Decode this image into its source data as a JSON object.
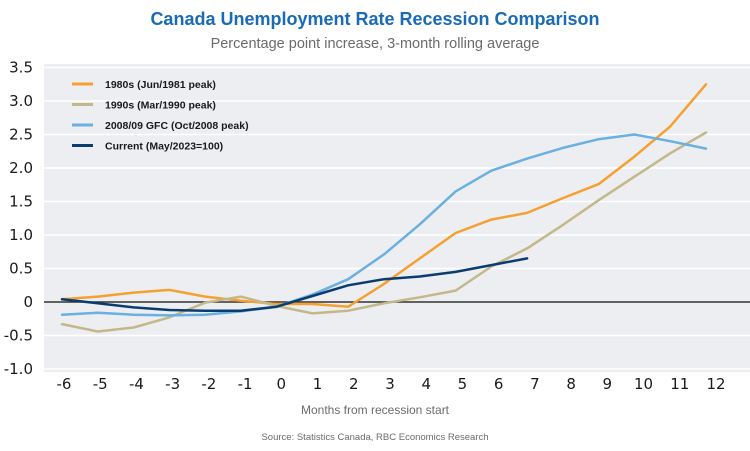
{
  "chart_data": {
    "type": "line",
    "title": "Canada Unemployment Rate Recession Comparison",
    "subtitle": "Percentage point increase, 3-month rolling average",
    "xlabel": "Months from recession start",
    "ylabel": "",
    "source": "Source: Statistics Canada, RBC Economics Research",
    "x_ticks": [
      "-6",
      "-5",
      "-4",
      "-3",
      "-2",
      "-1",
      "0",
      "1",
      "2",
      "3",
      "4",
      "5",
      "6",
      "7",
      "8",
      "9",
      "10",
      "11",
      "12"
    ],
    "y_ticks": [
      "3.5",
      "3.0",
      "2.5",
      "2.0",
      "1.5",
      "1.0",
      "0.5",
      "0",
      "-0.5",
      "-1.0"
    ],
    "y_tick_values": [
      3.5,
      3.0,
      2.5,
      2.0,
      1.5,
      1.0,
      0.5,
      0,
      -0.5,
      -1.0
    ],
    "ylim": [
      -1.0,
      3.5
    ],
    "xlim": [
      -6,
      12
    ],
    "grid": true,
    "legend_position": "top-left",
    "series": [
      {
        "name": "1980s (Jun/1981 peak)",
        "color": "#f5a031",
        "x": [
          -6,
          -5,
          -4,
          -3,
          -2,
          -1,
          0,
          1,
          2,
          3,
          4,
          5,
          6,
          7,
          8,
          9,
          10,
          11,
          12
        ],
        "values": [
          0.04,
          0.08,
          0.14,
          0.18,
          0.08,
          0.02,
          -0.03,
          -0.03,
          -0.07,
          0.27,
          0.65,
          1.03,
          1.23,
          1.33,
          1.55,
          1.76,
          2.17,
          2.62,
          3.25
        ]
      },
      {
        "name": "1990s (Mar/1990 peak)",
        "color": "#c4b88a",
        "x": [
          -6,
          -5,
          -4,
          -3,
          -2,
          -1,
          0,
          1,
          2,
          3,
          4,
          5,
          6,
          7,
          8,
          9,
          10,
          11,
          12
        ],
        "values": [
          -0.33,
          -0.44,
          -0.38,
          -0.23,
          -0.01,
          0.08,
          -0.06,
          -0.17,
          -0.13,
          -0.02,
          0.07,
          0.17,
          0.53,
          0.8,
          1.15,
          1.52,
          1.87,
          2.22,
          2.53
        ]
      },
      {
        "name": "2008/09 GFC (Oct/2008 peak)",
        "color": "#6ab0e0",
        "x": [
          -6,
          -5,
          -4,
          -3,
          -2,
          -1,
          0,
          1,
          2,
          3,
          4,
          5,
          6,
          7,
          8,
          9,
          10,
          11,
          12
        ],
        "values": [
          -0.19,
          -0.16,
          -0.19,
          -0.2,
          -0.19,
          -0.14,
          -0.07,
          0.11,
          0.34,
          0.71,
          1.16,
          1.65,
          1.96,
          2.14,
          2.3,
          2.43,
          2.5,
          2.4,
          2.29
        ]
      },
      {
        "name": "Current (May/2023=100)",
        "color": "#0b3c6e",
        "x": [
          -6,
          -5,
          -4,
          -3,
          -2,
          -1,
          0,
          1,
          2,
          3,
          4,
          5,
          6,
          7
        ],
        "values": [
          0.04,
          -0.02,
          -0.08,
          -0.12,
          -0.13,
          -0.13,
          -0.07,
          0.09,
          0.25,
          0.34,
          0.38,
          0.45,
          0.55,
          0.65
        ]
      }
    ]
  },
  "colors": {
    "title": "#1a6bb5",
    "plot_background": "#eceef2",
    "gridline": "#ffffff",
    "zero_line": "#333333"
  }
}
